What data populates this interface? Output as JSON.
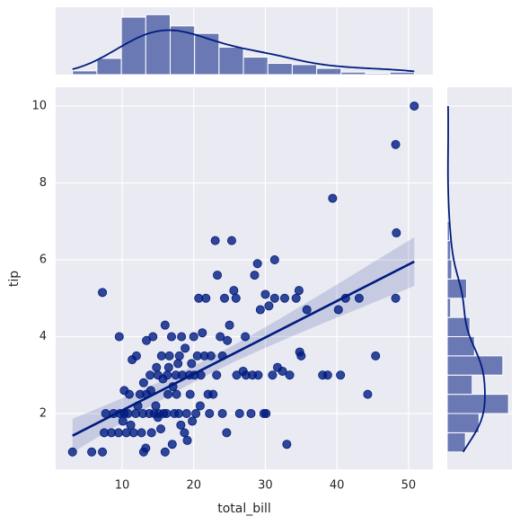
{
  "chart_data": [
    {
      "type": "scatter",
      "x_label": "total_bill",
      "y_label": "tip",
      "color": "#001c7f",
      "regression": true,
      "grid": true,
      "xlim": [
        0.72,
        53.4
      ],
      "ylim": [
        0.55,
        10.49
      ],
      "xticks": [
        10,
        20,
        30,
        40,
        50
      ],
      "yticks": [
        2,
        4,
        6,
        8,
        10
      ],
      "x": [
        3.07,
        5.75,
        7.25,
        7.25,
        7.5,
        7.7,
        8.5,
        8.8,
        9.5,
        9.6,
        9.7,
        10.1,
        10.3,
        10.3,
        10.6,
        10.8,
        11,
        11.2,
        11.4,
        11.6,
        11.9,
        12.0,
        12.2,
        12.5,
        12.7,
        12.9,
        13.0,
        13.0,
        13.3,
        13.4,
        13.4,
        13.8,
        13.9,
        14.0,
        14.1,
        14.3,
        14.5,
        14.7,
        14.8,
        15.0,
        15.0,
        15.1,
        15.4,
        15.5,
        15.7,
        15.8,
        16.0,
        16.0,
        16.2,
        16.3,
        16.4,
        16.5,
        16.6,
        16.9,
        17.0,
        17.1,
        17.3,
        17.5,
        17.6,
        17.8,
        17.9,
        18.0,
        18.2,
        18.3,
        18.4,
        18.7,
        18.8,
        19.0,
        19.1,
        19.4,
        19.5,
        19.7,
        19.8,
        20.0,
        20.1,
        20.3,
        20.5,
        20.7,
        20.9,
        21.0,
        21.2,
        21.5,
        21.7,
        22.0,
        22.2,
        22.4,
        22.7,
        23.0,
        23.2,
        23.3,
        23.7,
        24.0,
        24.0,
        24.3,
        24.6,
        24.7,
        25.0,
        25.3,
        25.6,
        25.9,
        26.0,
        26.4,
        26.9,
        27.2,
        27.3,
        28.0,
        28.2,
        28.5,
        28.9,
        29.0,
        29.3,
        29.8,
        30.0,
        30.1,
        30.5,
        31.0,
        31.3,
        31.7,
        31.3,
        32.4,
        32.7,
        33.0,
        33.4,
        34.3,
        34.7,
        34.8,
        35.0,
        35.8,
        38.0,
        38.7,
        39.4,
        40.2,
        40.5,
        41.2,
        43.1,
        44.3,
        45.4,
        48.2,
        48.3,
        48.2,
        50.8
      ],
      "y": [
        1.0,
        1.0,
        1.0,
        5.15,
        1.5,
        2.0,
        1.5,
        2.0,
        1.5,
        4.0,
        2.0,
        1.8,
        2.6,
        2.0,
        1.5,
        2.0,
        2.5,
        1.7,
        3.4,
        1.5,
        2.0,
        3.5,
        2.2,
        2.5,
        1.5,
        2.0,
        2.8,
        1.0,
        1.1,
        2.5,
        3.9,
        2.0,
        3.0,
        2.6,
        1.5,
        4.0,
        2.0,
        2.2,
        3.2,
        1.9,
        3.0,
        2.0,
        1.6,
        3.5,
        2.9,
        2.0,
        4.3,
        1.0,
        2.0,
        3.0,
        2.5,
        3.2,
        3.5,
        4.0,
        1.2,
        2.7,
        2.0,
        3.0,
        2.5,
        3.3,
        2.0,
        3.5,
        1.7,
        4.0,
        3.0,
        1.5,
        3.7,
        2.0,
        1.3,
        3.0,
        2.5,
        3.3,
        1.8,
        4.0,
        3.0,
        2.0,
        3.5,
        5.0,
        2.2,
        3.0,
        4.1,
        3.5,
        5.0,
        2.5,
        2.0,
        3.5,
        2.5,
        6.5,
        3.0,
        5.6,
        4.0,
        3.5,
        2.0,
        5.0,
        1.5,
        3.9,
        4.3,
        6.5,
        5.2,
        5.0,
        3.0,
        2.0,
        3.1,
        4.0,
        3.0,
        2.0,
        3.0,
        5.6,
        5.9,
        3.0,
        4.7,
        2.0,
        5.1,
        2.0,
        4.8,
        3.0,
        5.0,
        3.2,
        6.0,
        3.1,
        5.0,
        1.2,
        3.0,
        5.0,
        5.2,
        3.6,
        3.5,
        4.7,
        3.0,
        3.0,
        7.6,
        4.7,
        3.0,
        5.0,
        5.0,
        2.5,
        3.5,
        9.0,
        6.7,
        5.0,
        10.0
      ]
    },
    {
      "type": "histogram",
      "orientation": "vertical",
      "color": "#001c7f",
      "kde": true,
      "xlim": [
        0.72,
        53.4
      ],
      "ylim": [
        0,
        54
      ],
      "bins": [
        3.07,
        6.48,
        9.89,
        13.3,
        16.71,
        20.12,
        23.53,
        26.94,
        30.35,
        33.76,
        37.17,
        40.58,
        43.99,
        47.4,
        50.81
      ],
      "counts": [
        3,
        13,
        46,
        48,
        39,
        33,
        22,
        14,
        9,
        8,
        5,
        2,
        1,
        2
      ]
    },
    {
      "type": "histogram",
      "orientation": "horizontal",
      "color": "#001c7f",
      "kde": true,
      "ylim": [
        0.55,
        10.49
      ],
      "xlim": [
        0,
        57
      ],
      "bins": [
        1.0,
        1.5,
        2.0,
        2.5,
        3.0,
        3.5,
        4.0,
        4.5,
        5.0,
        5.5,
        6.0,
        6.5,
        7.0,
        7.5,
        8.0,
        8.5,
        9.0,
        9.5,
        10.0
      ],
      "counts": [
        16,
        28,
        54,
        22,
        49,
        24,
        20,
        3,
        17,
        4,
        3,
        2,
        0,
        1,
        0,
        0,
        1,
        1
      ]
    }
  ]
}
